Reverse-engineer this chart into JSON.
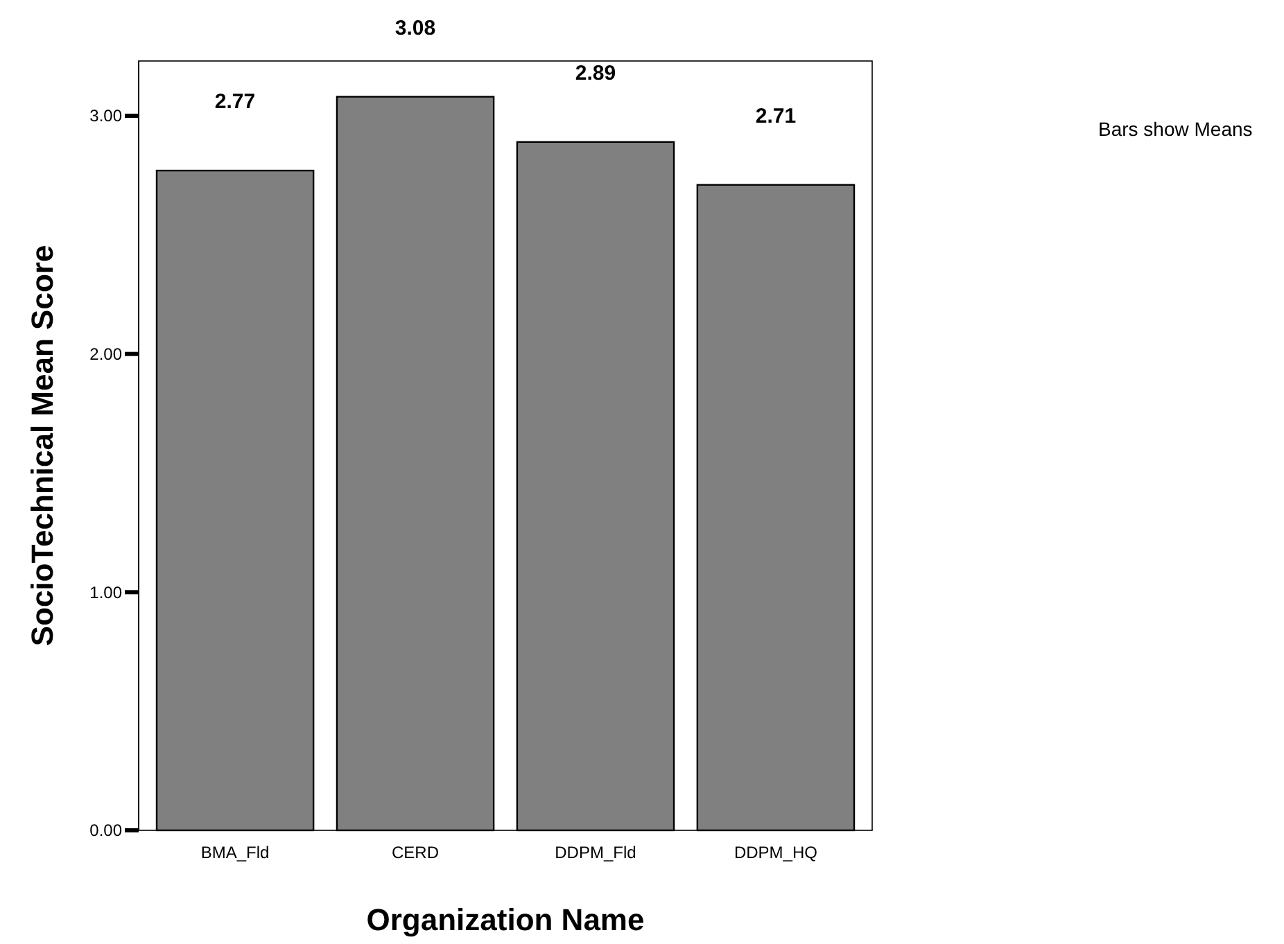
{
  "chart_data": {
    "type": "bar",
    "xlabel": "Organization Name",
    "ylabel": "SocioTechnical Mean Score",
    "categories": [
      "BMA_Fld",
      "CERD",
      "DDPM_Fld",
      "DDPM_HQ"
    ],
    "values": [
      2.77,
      3.08,
      2.89,
      2.71
    ],
    "color": "#808080",
    "ylim": [
      0,
      3.23
    ],
    "yticks": [
      {
        "value": 0,
        "label": "0.00"
      },
      {
        "value": 1,
        "label": "1.00"
      },
      {
        "value": 2,
        "label": "2.00"
      },
      {
        "value": 3,
        "label": "3.00"
      }
    ],
    "grid": false,
    "data_labels": true,
    "annotations": [
      "Bars show Means"
    ]
  }
}
